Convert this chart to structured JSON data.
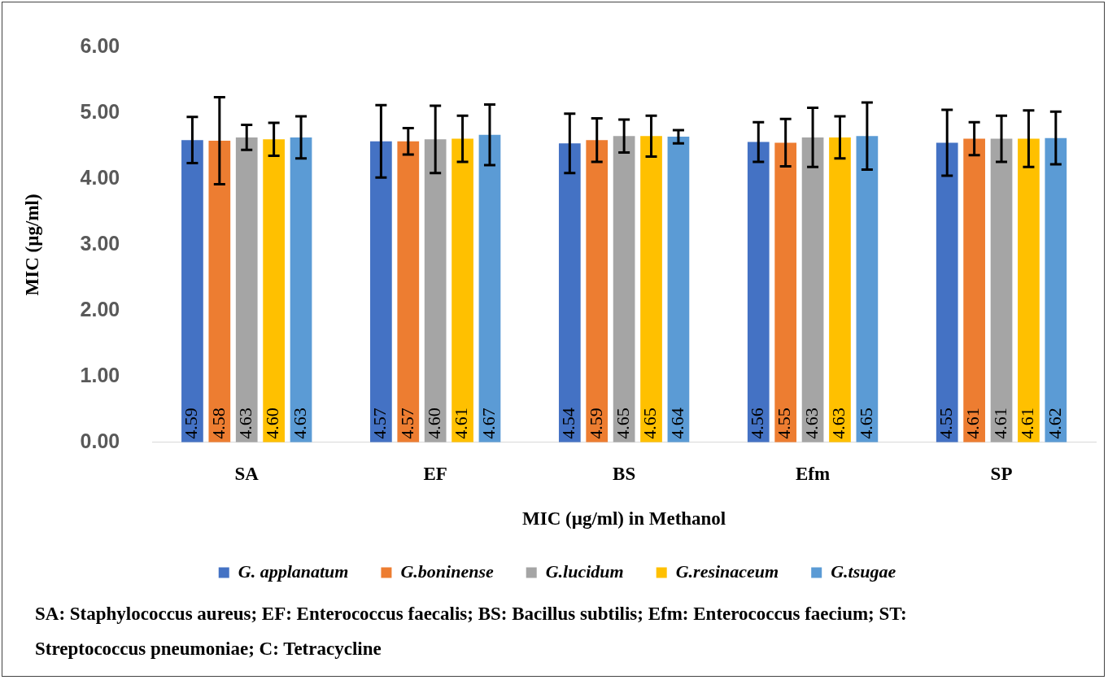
{
  "chart_data": {
    "type": "bar",
    "categories": [
      "SA",
      "EF",
      "BS",
      "Efm",
      "SP"
    ],
    "xlabel": "MIC (µg/ml) in Methanol",
    "ylabel": "MIC (µg/ml)",
    "ylim": [
      0,
      6
    ],
    "yticks": [
      {
        "value": 0,
        "label": "0.00"
      },
      {
        "value": 1,
        "label": "1.00"
      },
      {
        "value": 2,
        "label": "2.00"
      },
      {
        "value": 3,
        "label": "3.00"
      },
      {
        "value": 4,
        "label": "4.00"
      },
      {
        "value": 5,
        "label": "5.00"
      },
      {
        "value": 6,
        "label": "6.00"
      }
    ],
    "grid": false,
    "legend": "bottom",
    "series": [
      {
        "name": "G. applanatum",
        "color": "#4472c4",
        "values": [
          4.59,
          4.57,
          4.54,
          4.56,
          4.55
        ],
        "value_labels": [
          "4.59",
          "4.57",
          "4.54",
          "4.56",
          "4.55"
        ],
        "errors": [
          0.35,
          0.55,
          0.45,
          0.3,
          0.5
        ]
      },
      {
        "name": "G.boninense",
        "color": "#ed7d31",
        "values": [
          4.58,
          4.57,
          4.59,
          4.55,
          4.61
        ],
        "value_labels": [
          "4.58",
          "4.57",
          "4.59",
          "4.55",
          "4.61"
        ],
        "errors": [
          0.66,
          0.2,
          0.33,
          0.36,
          0.25
        ]
      },
      {
        "name": "G.lucidum",
        "color": "#a5a5a5",
        "values": [
          4.63,
          4.6,
          4.65,
          4.63,
          4.61
        ],
        "value_labels": [
          "4.63",
          "4.60",
          "4.65",
          "4.63",
          "4.61"
        ],
        "errors": [
          0.19,
          0.51,
          0.25,
          0.45,
          0.35
        ]
      },
      {
        "name": "G.resinaceum",
        "color": "#ffc000",
        "values": [
          4.6,
          4.61,
          4.65,
          4.63,
          4.61
        ],
        "value_labels": [
          "4.60",
          "4.61",
          "4.65",
          "4.63",
          "4.61"
        ],
        "errors": [
          0.25,
          0.35,
          0.31,
          0.32,
          0.43
        ]
      },
      {
        "name": "G.tsugae",
        "color": "#5b9bd5",
        "values": [
          4.63,
          4.67,
          4.64,
          4.65,
          4.62
        ],
        "value_labels": [
          "4.63",
          "4.67",
          "4.64",
          "4.65",
          "4.62"
        ],
        "errors": [
          0.32,
          0.46,
          0.1,
          0.51,
          0.4
        ]
      }
    ],
    "annotations": [
      "SA: Staphylococcus aureus; EF: Enterococcus faecalis; BS: Bacillus subtilis; Efm: Enterococcus faecium; ST: Streptococcus pneumoniae; C: Tetracycline"
    ]
  }
}
